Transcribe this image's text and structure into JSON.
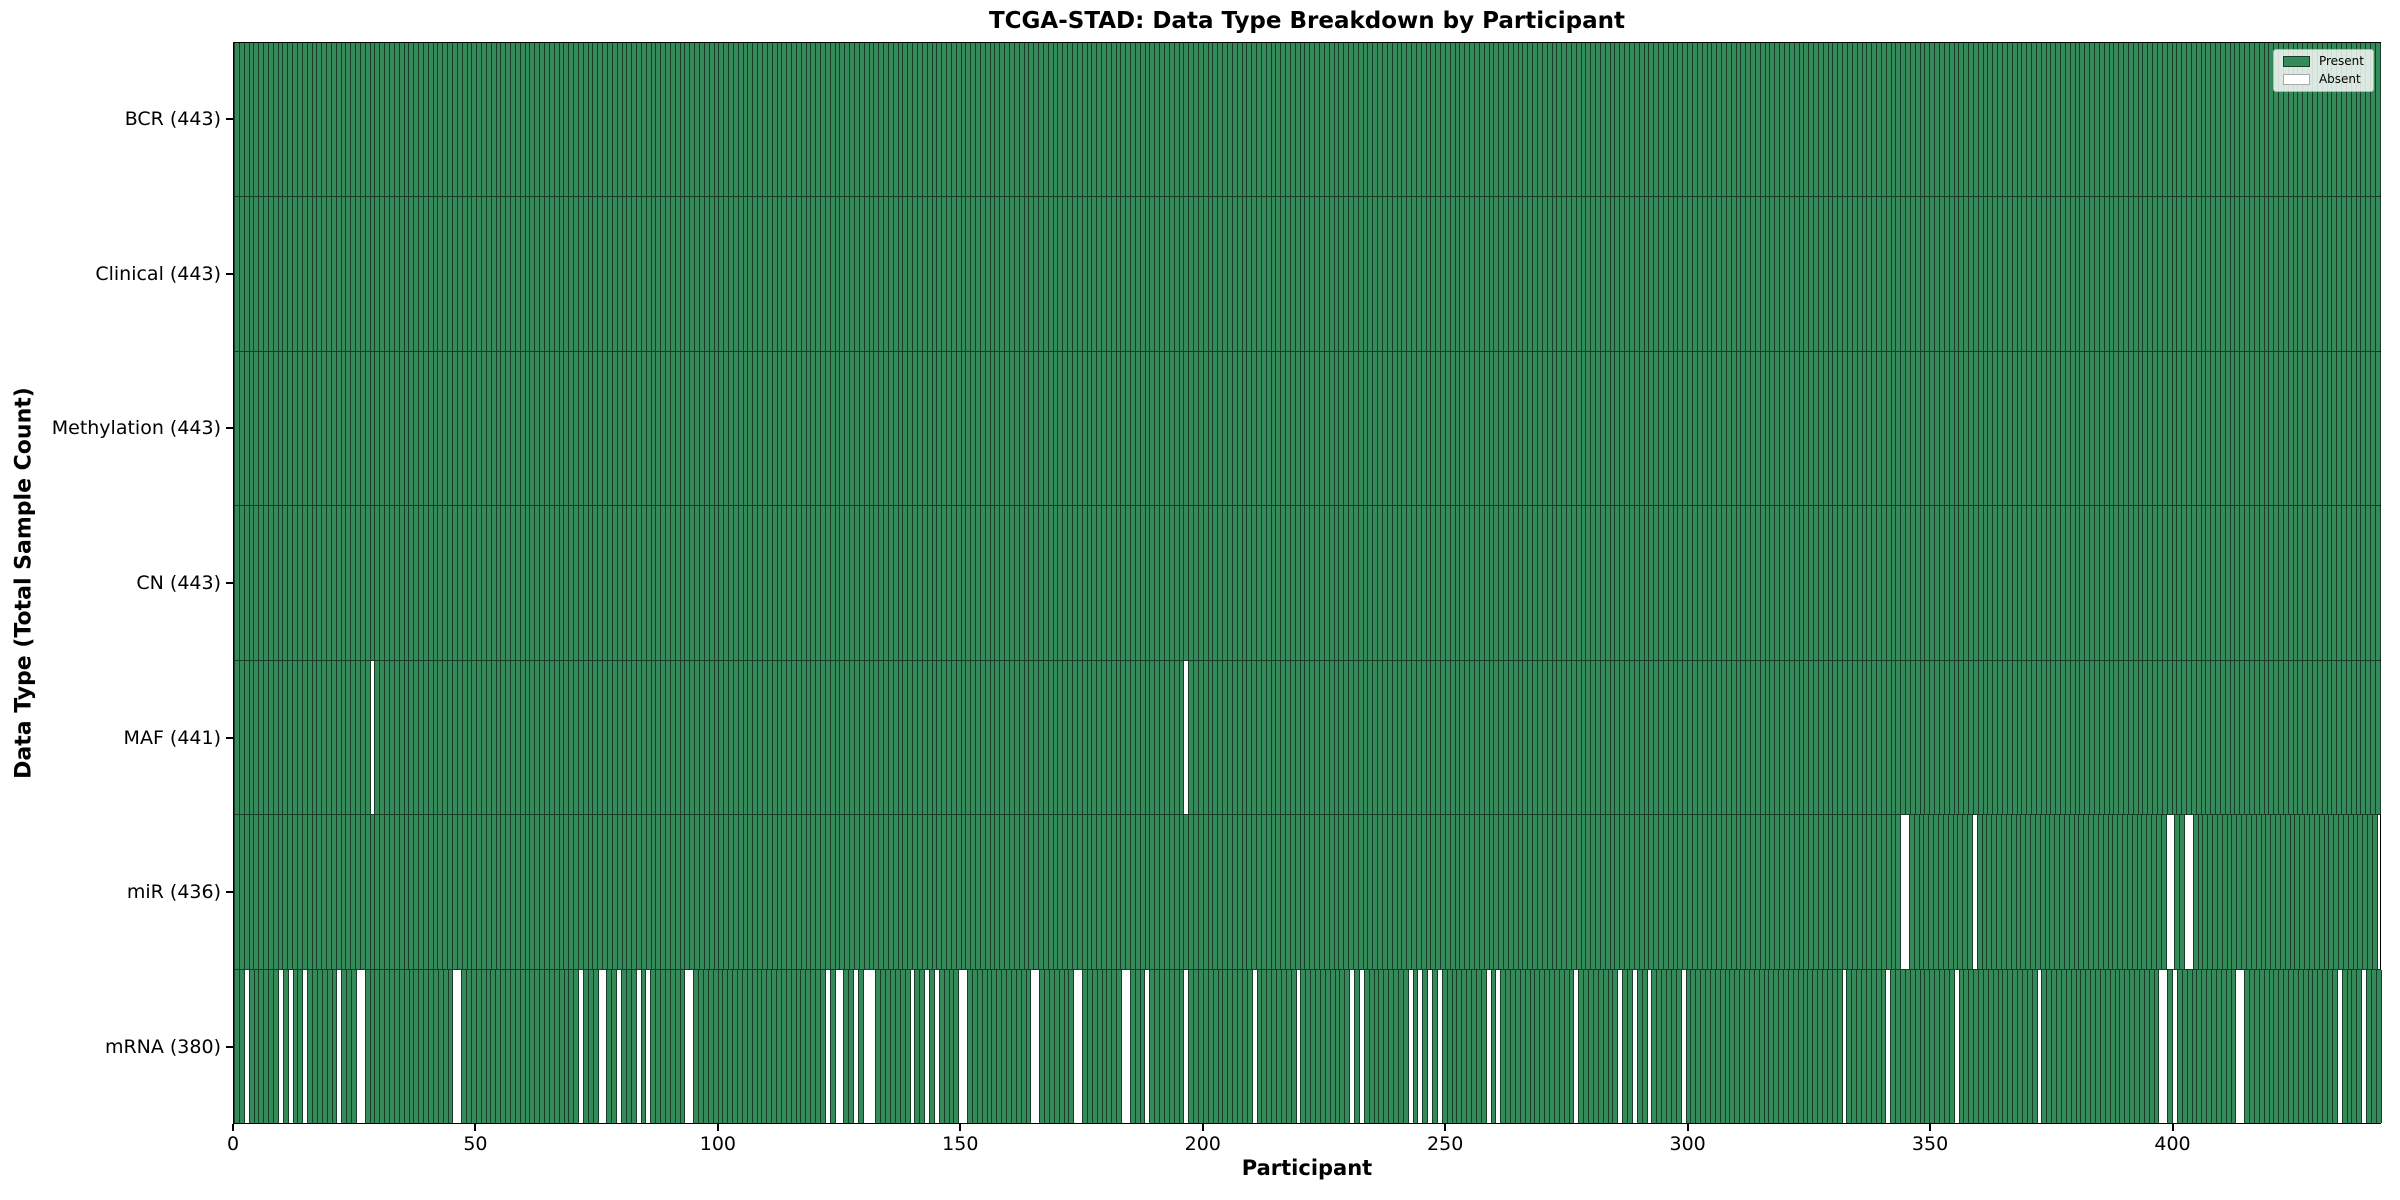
{
  "title": "TCGA-STAD: Data Type Breakdown by Participant",
  "x_axis": {
    "label": "Participant",
    "ticks": [
      0,
      50,
      100,
      150,
      200,
      250,
      300,
      350,
      400
    ]
  },
  "y_axis": {
    "label": "Data Type (Total Sample Count)"
  },
  "legend": {
    "items": [
      {
        "label": "Present",
        "color": "#348b59",
        "border": "#173d28"
      },
      {
        "label": "Absent",
        "color": "#ffffff",
        "border": "#aaaaaa"
      }
    ]
  },
  "colors": {
    "present": "#348b59",
    "absent": "#ffffff",
    "bar_edge": "#173d28",
    "axis": "#000000"
  },
  "chart_data": {
    "type": "heatmap",
    "title": "TCGA-STAD: Data Type Breakdown by Participant",
    "xlabel": "Participant",
    "ylabel": "Data Type (Total Sample Count)",
    "x_range": [
      0,
      443
    ],
    "x_ticks": [
      0,
      50,
      100,
      150,
      200,
      250,
      300,
      350,
      400
    ],
    "n_participants": 443,
    "grid": false,
    "legend_position": "upper right",
    "rows": [
      {
        "name": "BCR",
        "label": "BCR (443)",
        "present_count": 443,
        "absent_participants": []
      },
      {
        "name": "Clinical",
        "label": "Clinical (443)",
        "present_count": 443,
        "absent_participants": []
      },
      {
        "name": "Methylation",
        "label": "Methylation (443)",
        "present_count": 443,
        "absent_participants": []
      },
      {
        "name": "CN",
        "label": "CN (443)",
        "present_count": 443,
        "absent_participants": []
      },
      {
        "name": "MAF",
        "label": "MAF (441)",
        "present_count": 441,
        "absent_participants": [
          28,
          196
        ]
      },
      {
        "name": "miR",
        "label": "miR (436)",
        "present_count": 436,
        "absent_participants": [
          344,
          345,
          359,
          399,
          400,
          403,
          404
        ]
      },
      {
        "name": "mRNA",
        "label": "mRNA (380)",
        "present_count": 380,
        "absent_participants": [
          2,
          9,
          11,
          14,
          21,
          25,
          26,
          45,
          46,
          71,
          75,
          76,
          79,
          83,
          85,
          93,
          94,
          122,
          124,
          125,
          128,
          130,
          131,
          132,
          140,
          143,
          145,
          150,
          151,
          165,
          166,
          174,
          175,
          184,
          185,
          189,
          197,
          211,
          220,
          231,
          233,
          243,
          245,
          247,
          249,
          259,
          261,
          277,
          286,
          289,
          292,
          299,
          332,
          341,
          355,
          372,
          397,
          398,
          400,
          413,
          414,
          434,
          439
        ]
      }
    ]
  }
}
